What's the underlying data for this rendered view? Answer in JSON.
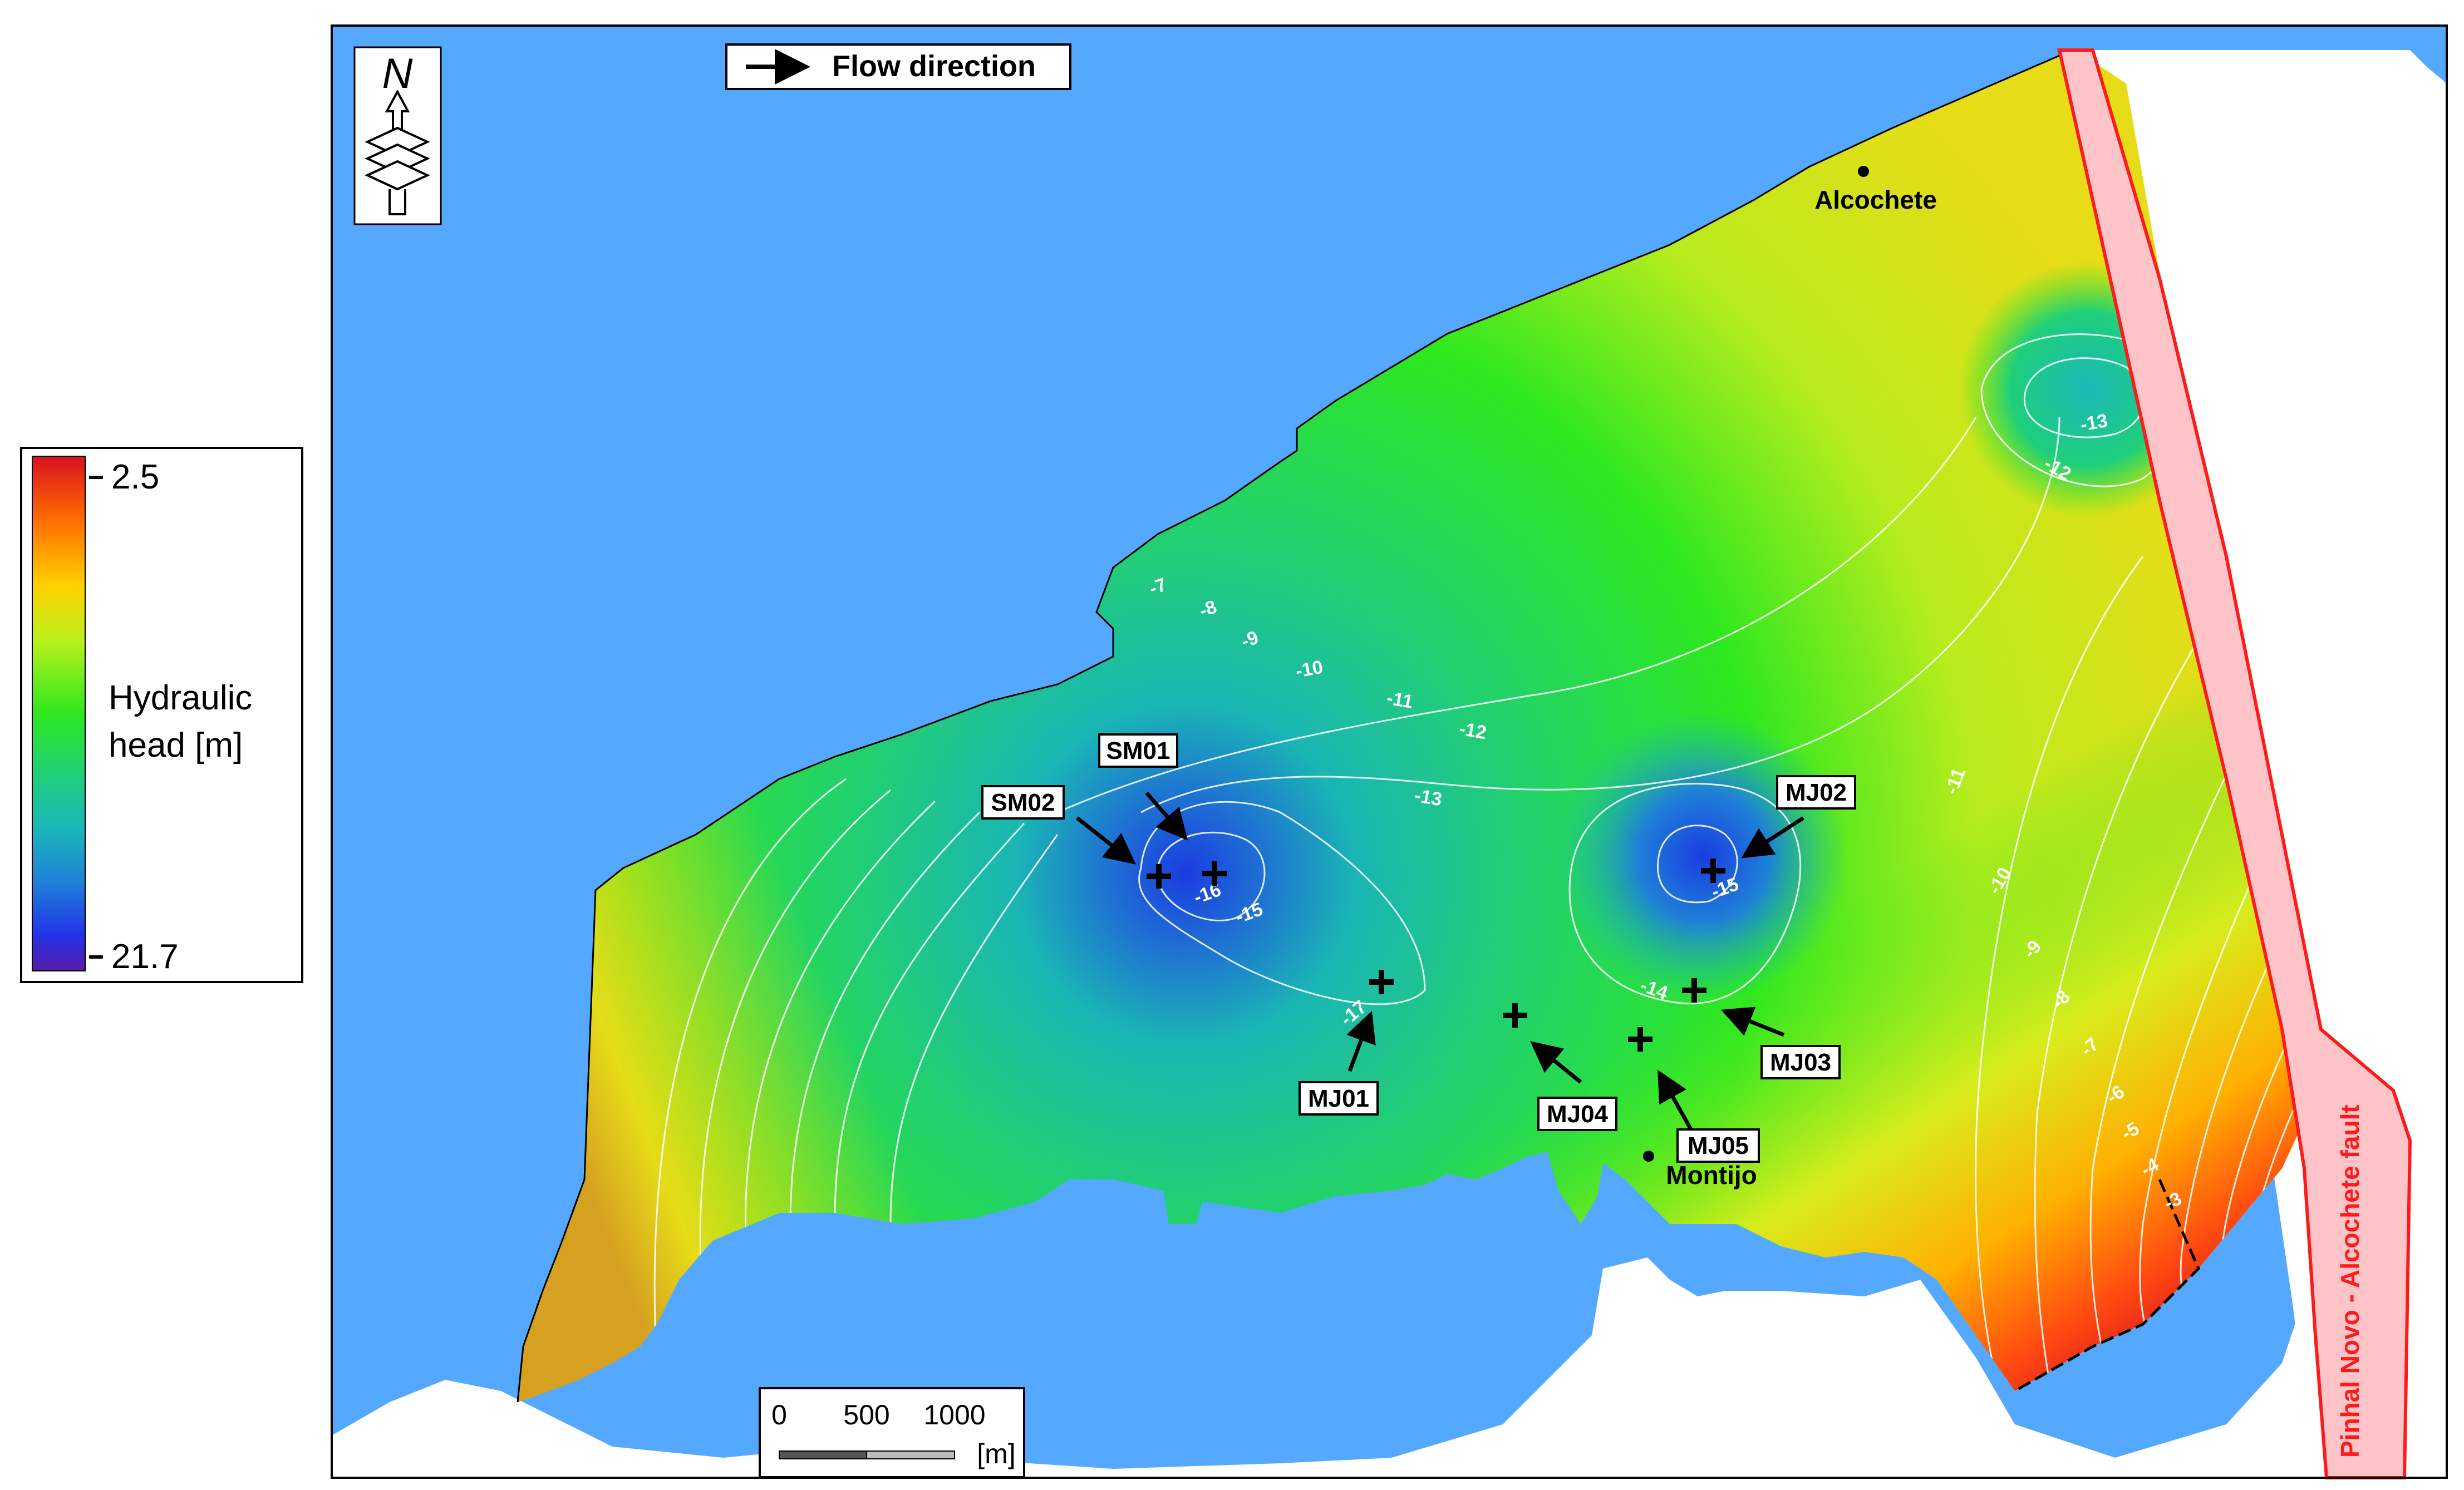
{
  "legend": {
    "title_line1": "Hydraulic",
    "title_line2": "head [m]",
    "max_label": "2.5",
    "min_label": "21.7",
    "colors": [
      "#d9101f",
      "#ff6a00",
      "#ffd000",
      "#d8f01c",
      "#2ee81e",
      "#1fcf7a",
      "#1ab8b8",
      "#1f80d8",
      "#2233e8",
      "#5a1aa8"
    ]
  },
  "flow_box": {
    "label": "Flow direction"
  },
  "scale_bar": {
    "ticks": [
      "0",
      "500",
      "1000"
    ],
    "unit": "[m]"
  },
  "fault": {
    "label": "Pinhal Novo - Alcochete fault",
    "color": "#ff1a1a"
  },
  "towns": [
    {
      "name": "Alcochete"
    },
    {
      "name": "Montijo"
    }
  ],
  "wells": [
    {
      "id": "SM01"
    },
    {
      "id": "SM02"
    },
    {
      "id": "MJ01"
    },
    {
      "id": "MJ02"
    },
    {
      "id": "MJ03"
    },
    {
      "id": "MJ04"
    },
    {
      "id": "MJ05"
    }
  ],
  "contour_labels": [
    "-3",
    "-4",
    "-5",
    "-6",
    "-7",
    "-8",
    "-9",
    "-10",
    "-11",
    "-12",
    "-13",
    "-14",
    "-15",
    "-16",
    "-17"
  ],
  "colors": {
    "water": "#55a8ff",
    "fault_band": "#ffc4c8",
    "land": "#ffffff"
  }
}
